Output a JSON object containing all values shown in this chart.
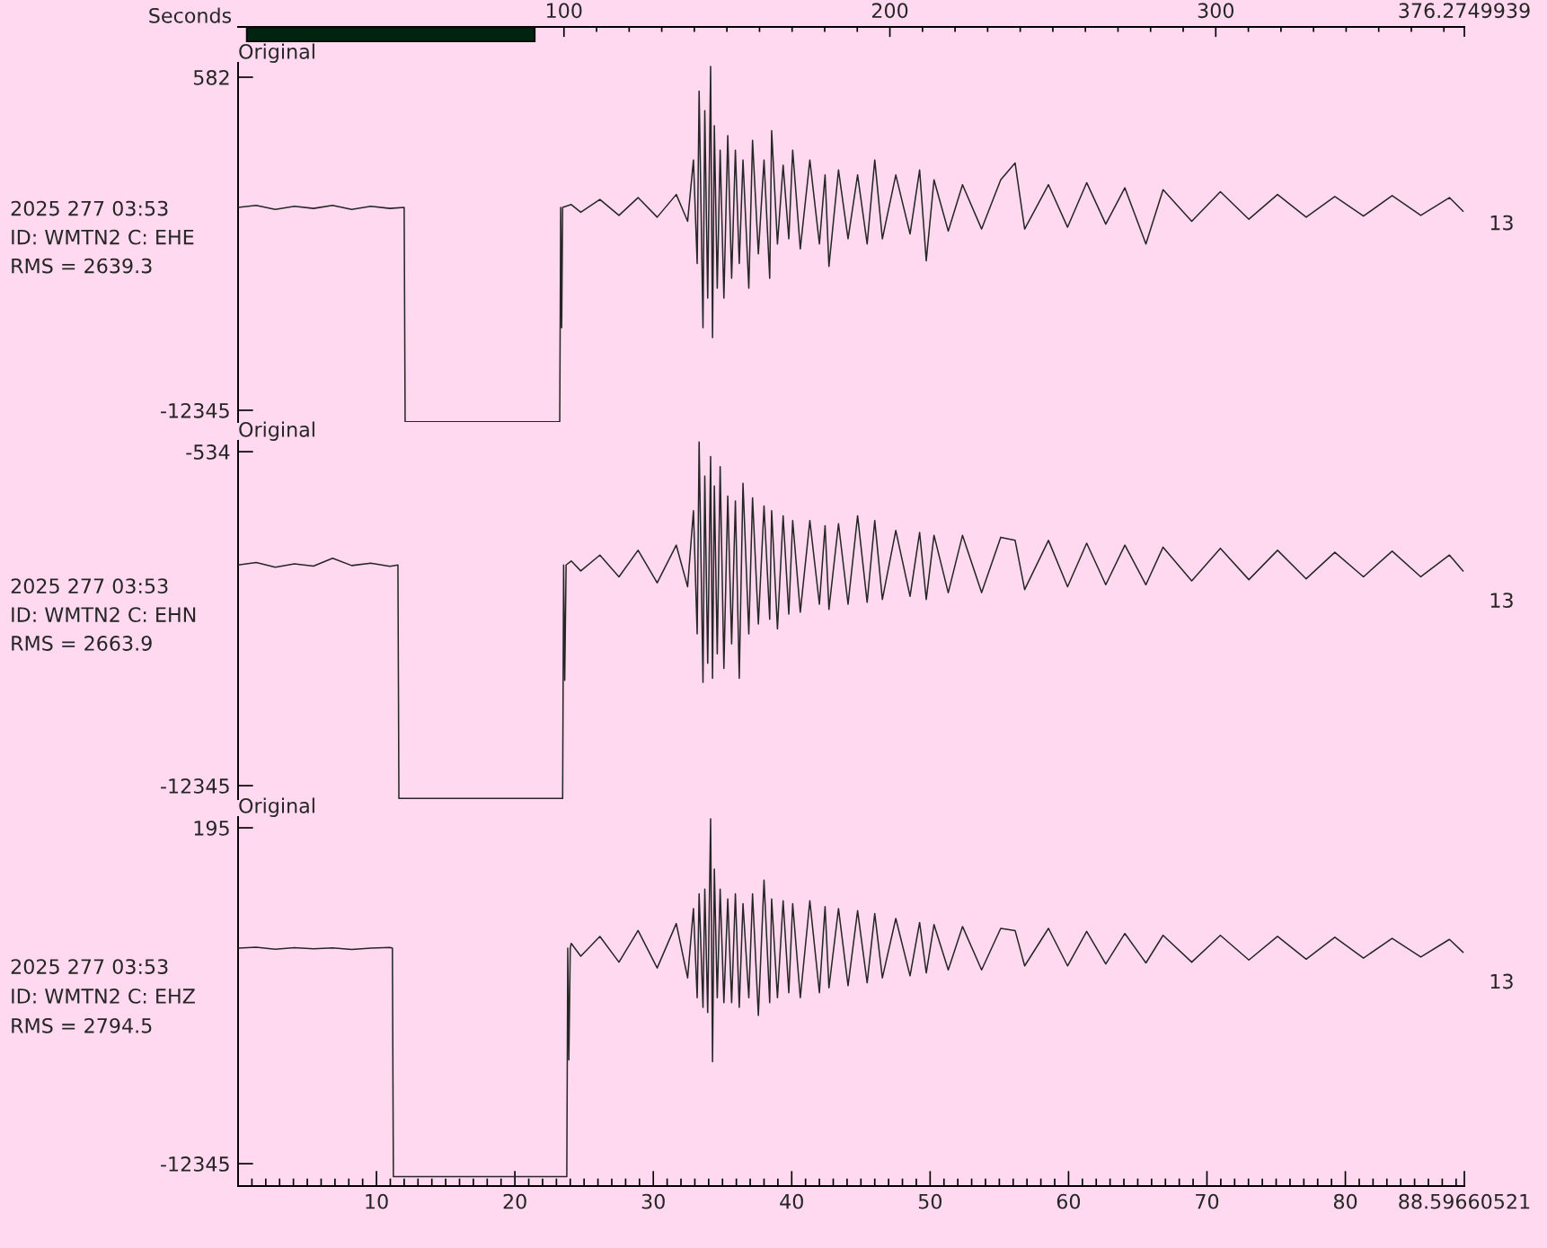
{
  "chart_data": [
    {
      "type": "bar",
      "orientation": "horizontal",
      "categories": [
        null
      ],
      "values": [
        88.3
      ],
      "base": [
        2.7
      ],
      "colors": [
        "#00240f"
      ],
      "xlabel": "Seconds",
      "xlim": [
        0,
        376.2749939
      ],
      "tick_labels": "x",
      "xticks": [
        {
          "value": 10,
          "label": null
        },
        {
          "value": 20,
          "label": null
        },
        {
          "value": 30,
          "label": null
        },
        {
          "value": 40,
          "label": null
        },
        {
          "value": 50,
          "label": null
        },
        {
          "value": 60,
          "label": null
        },
        {
          "value": 70,
          "label": null
        },
        {
          "value": 80,
          "label": null
        },
        {
          "value": 90,
          "label": null
        },
        100,
        {
          "value": 110,
          "label": null
        },
        {
          "value": 120,
          "label": null
        },
        {
          "value": 130,
          "label": null
        },
        {
          "value": 140,
          "label": null
        },
        {
          "value": 150,
          "label": null
        },
        {
          "value": 160,
          "label": null
        },
        {
          "value": 170,
          "label": null
        },
        {
          "value": 180,
          "label": null
        },
        {
          "value": 190,
          "label": null
        },
        200,
        {
          "value": 210,
          "label": null
        },
        {
          "value": 220,
          "label": null
        },
        {
          "value": 230,
          "label": null
        },
        {
          "value": 240,
          "label": null
        },
        {
          "value": 250,
          "label": null
        },
        {
          "value": 260,
          "label": null
        },
        {
          "value": 270,
          "label": null
        },
        {
          "value": 280,
          "label": null
        },
        {
          "value": 290,
          "label": null
        },
        300,
        {
          "value": 310,
          "label": null
        },
        {
          "value": 320,
          "label": null
        },
        {
          "value": 330,
          "label": null
        },
        {
          "value": 340,
          "label": null
        },
        {
          "value": 350,
          "label": null
        },
        {
          "value": 360,
          "label": null
        },
        {
          "value": 370,
          "label": null
        },
        376.2749939
      ],
      "grid": false
    },
    {
      "type": "line",
      "title": "Original",
      "xlim": [
        0,
        88.59660521
      ],
      "ylim": [
        -12800,
        1140
      ],
      "tick_labels": "y",
      "yticks": [
        582,
        -12345
      ],
      "annotations": [
        "2025 277 03:53",
        "ID: WMTN2 C: EHE",
        "RMS = 2639.3",
        "13"
      ],
      "series": [
        {
          "color": "#262626",
          "x": [
            0,
            1.31,
            2.69,
            4.07,
            5.45,
            6.83,
            8.21,
            9.59,
            10.97,
            12.0,
            12.07,
            23.24,
            23.31,
            23.38,
            23.45,
            24.07,
            24.76,
            26.14,
            27.52,
            28.9,
            30.28,
            31.66,
            32.48,
            32.9,
            33.17,
            33.31,
            33.59,
            33.72,
            33.93,
            34.14,
            34.28,
            34.41,
            34.62,
            34.83,
            35.1,
            35.38,
            35.66,
            35.93,
            36.21,
            36.48,
            36.9,
            37.17,
            37.59,
            38.0,
            38.41,
            38.55,
            38.97,
            39.38,
            39.79,
            40.07,
            40.62,
            41.31,
            42.0,
            42.41,
            42.69,
            43.38,
            44.07,
            44.76,
            45.45,
            46.0,
            46.55,
            47.52,
            48.55,
            49.24,
            49.72,
            50.28,
            51.31,
            52.34,
            53.72,
            55.1,
            56.14,
            56.83,
            58.55,
            59.93,
            61.31,
            62.69,
            64.07,
            65.59,
            66.83,
            68.9,
            70.97,
            73.03,
            75.1,
            77.17,
            79.24,
            81.31,
            83.38,
            85.45,
            87.52,
            88.5
          ],
          "values": [
            -4470,
            -4390,
            -4550,
            -4430,
            -4510,
            -4390,
            -4550,
            -4430,
            -4510,
            -4470,
            -12790,
            -12790,
            -4470,
            -9140,
            -4470,
            -4360,
            -4660,
            -4160,
            -4780,
            -4090,
            -4850,
            -3970,
            -5010,
            -2630,
            -6650,
            40,
            -9140,
            -720,
            -7990,
            1000,
            -9520,
            -1300,
            -7610,
            -2250,
            -7990,
            -1680,
            -7220,
            -2250,
            -6650,
            -2630,
            -7610,
            -1870,
            -6270,
            -2630,
            -7220,
            -1490,
            -5890,
            -2830,
            -5690,
            -2250,
            -6080,
            -2630,
            -5890,
            -3210,
            -6760,
            -3020,
            -5690,
            -3210,
            -5890,
            -2630,
            -5690,
            -3210,
            -5500,
            -3020,
            -6540,
            -3400,
            -5390,
            -3590,
            -5310,
            -3400,
            -2750,
            -5310,
            -3590,
            -5240,
            -3510,
            -5120,
            -3710,
            -5890,
            -3780,
            -5010,
            -3860,
            -4930,
            -3970,
            -4850,
            -4050,
            -4810,
            -4010,
            -4780,
            -4090,
            -4620
          ]
        }
      ]
    },
    {
      "type": "line",
      "title": "Original",
      "xlim": [
        0,
        88.59660521
      ],
      "ylim": [
        -12820,
        -150
      ],
      "tick_labels": "y",
      "yticks": [
        -534,
        -12345
      ],
      "annotations": [
        "2025 277 03:53",
        "ID: WMTN2 C: EHN",
        "RMS = 2663.9",
        "13"
      ],
      "series": [
        {
          "color": "#262626",
          "x": [
            0,
            1.31,
            2.69,
            4.07,
            5.45,
            6.83,
            8.21,
            9.59,
            10.97,
            11.55,
            11.62,
            23.45,
            23.52,
            23.6,
            23.7,
            24.07,
            24.76,
            26.14,
            27.52,
            28.9,
            30.28,
            31.66,
            32.48,
            32.9,
            33.17,
            33.31,
            33.59,
            33.72,
            33.93,
            34.14,
            34.28,
            34.41,
            34.62,
            34.83,
            35.1,
            35.38,
            35.66,
            35.93,
            36.21,
            36.48,
            36.9,
            37.17,
            37.59,
            38.0,
            38.41,
            38.55,
            38.97,
            39.38,
            39.79,
            40.07,
            40.62,
            41.31,
            42.0,
            42.41,
            42.69,
            43.38,
            44.07,
            44.76,
            45.45,
            46.0,
            46.55,
            47.52,
            48.55,
            49.24,
            49.72,
            50.28,
            51.31,
            52.34,
            53.72,
            55.1,
            56.14,
            56.83,
            58.55,
            59.93,
            61.31,
            62.69,
            64.07,
            65.59,
            66.83,
            68.9,
            70.97,
            73.03,
            75.1,
            77.17,
            79.24,
            81.31,
            83.38,
            85.45,
            87.52,
            88.5
          ],
          "values": [
            -4540,
            -4450,
            -4620,
            -4500,
            -4580,
            -4300,
            -4560,
            -4480,
            -4590,
            -4540,
            -12800,
            -12800,
            -4540,
            -8620,
            -4540,
            -4400,
            -4750,
            -4190,
            -4960,
            -4020,
            -5170,
            -3840,
            -5310,
            -2620,
            -6980,
            -190,
            -8690,
            -1400,
            -8020,
            -710,
            -8550,
            -1750,
            -7680,
            -1060,
            -8200,
            -2100,
            -7330,
            -2280,
            -8550,
            -1650,
            -6980,
            -2170,
            -6630,
            -2450,
            -6460,
            -2620,
            -6800,
            -2800,
            -6280,
            -2970,
            -6210,
            -2970,
            -5930,
            -3150,
            -6110,
            -3080,
            -5930,
            -2800,
            -5860,
            -2970,
            -5760,
            -3320,
            -5650,
            -3390,
            -5760,
            -3490,
            -5520,
            -3490,
            -5520,
            -3560,
            -3670,
            -5410,
            -3670,
            -5310,
            -3770,
            -5240,
            -3840,
            -5240,
            -3910,
            -5100,
            -3950,
            -5060,
            -4020,
            -5030,
            -4090,
            -4960,
            -4050,
            -4960,
            -4190,
            -4750
          ]
        }
      ]
    },
    {
      "type": "line",
      "title": "Original",
      "xlim": [
        0,
        88.59660521
      ],
      "ylim": [
        -13180,
        597
      ],
      "xticks": [
        {
          "value": 1,
          "label": null
        },
        {
          "value": 2,
          "label": null
        },
        {
          "value": 3,
          "label": null
        },
        {
          "value": 4,
          "label": null
        },
        {
          "value": 5,
          "label": null
        },
        {
          "value": 6,
          "label": null
        },
        {
          "value": 7,
          "label": null
        },
        {
          "value": 8,
          "label": null
        },
        {
          "value": 9,
          "label": null
        },
        10,
        {
          "value": 11,
          "label": null
        },
        {
          "value": 12,
          "label": null
        },
        {
          "value": 13,
          "label": null
        },
        {
          "value": 14,
          "label": null
        },
        {
          "value": 15,
          "label": null
        },
        {
          "value": 16,
          "label": null
        },
        {
          "value": 17,
          "label": null
        },
        {
          "value": 18,
          "label": null
        },
        {
          "value": 19,
          "label": null
        },
        20,
        {
          "value": 21,
          "label": null
        },
        {
          "value": 22,
          "label": null
        },
        {
          "value": 23,
          "label": null
        },
        {
          "value": 24,
          "label": null
        },
        {
          "value": 25,
          "label": null
        },
        {
          "value": 26,
          "label": null
        },
        {
          "value": 27,
          "label": null
        },
        {
          "value": 28,
          "label": null
        },
        {
          "value": 29,
          "label": null
        },
        30,
        {
          "value": 31,
          "label": null
        },
        {
          "value": 32,
          "label": null
        },
        {
          "value": 33,
          "label": null
        },
        {
          "value": 34,
          "label": null
        },
        {
          "value": 35,
          "label": null
        },
        {
          "value": 36,
          "label": null
        },
        {
          "value": 37,
          "label": null
        },
        {
          "value": 38,
          "label": null
        },
        {
          "value": 39,
          "label": null
        },
        40,
        {
          "value": 41,
          "label": null
        },
        {
          "value": 42,
          "label": null
        },
        {
          "value": 43,
          "label": null
        },
        {
          "value": 44,
          "label": null
        },
        {
          "value": 45,
          "label": null
        },
        {
          "value": 46,
          "label": null
        },
        {
          "value": 47,
          "label": null
        },
        {
          "value": 48,
          "label": null
        },
        {
          "value": 49,
          "label": null
        },
        50,
        {
          "value": 51,
          "label": null
        },
        {
          "value": 52,
          "label": null
        },
        {
          "value": 53,
          "label": null
        },
        {
          "value": 54,
          "label": null
        },
        {
          "value": 55,
          "label": null
        },
        {
          "value": 56,
          "label": null
        },
        {
          "value": 57,
          "label": null
        },
        {
          "value": 58,
          "label": null
        },
        {
          "value": 59,
          "label": null
        },
        60,
        {
          "value": 61,
          "label": null
        },
        {
          "value": 62,
          "label": null
        },
        {
          "value": 63,
          "label": null
        },
        {
          "value": 64,
          "label": null
        },
        {
          "value": 65,
          "label": null
        },
        {
          "value": 66,
          "label": null
        },
        {
          "value": 67,
          "label": null
        },
        {
          "value": 68,
          "label": null
        },
        {
          "value": 69,
          "label": null
        },
        70,
        {
          "value": 71,
          "label": null
        },
        {
          "value": 72,
          "label": null
        },
        {
          "value": 73,
          "label": null
        },
        {
          "value": 74,
          "label": null
        },
        {
          "value": 75,
          "label": null
        },
        {
          "value": 76,
          "label": null
        },
        {
          "value": 77,
          "label": null
        },
        {
          "value": 78,
          "label": null
        },
        {
          "value": 79,
          "label": null
        },
        80,
        {
          "value": 81,
          "label": null
        },
        {
          "value": 82,
          "label": null
        },
        {
          "value": 83,
          "label": null
        },
        {
          "value": 84,
          "label": null
        },
        {
          "value": 85,
          "label": null
        },
        {
          "value": 86,
          "label": null
        },
        {
          "value": 87,
          "label": null
        },
        {
          "value": 88,
          "label": null
        },
        88.59660521
      ],
      "yticks": [
        195,
        -12345
      ],
      "annotations": [
        "2025 277 03:53",
        "ID: WMTN2 C: EHZ",
        "RMS = 2794.5",
        "13"
      ],
      "series": [
        {
          "color": "#262626",
          "x": [
            0,
            1.31,
            2.69,
            4.07,
            5.45,
            6.83,
            8.21,
            9.59,
            10.97,
            11.15,
            11.22,
            23.75,
            23.82,
            23.9,
            24.0,
            24.07,
            24.76,
            26.14,
            27.52,
            28.9,
            30.28,
            31.66,
            32.48,
            32.9,
            33.17,
            33.31,
            33.59,
            33.72,
            33.93,
            34.14,
            34.28,
            34.41,
            34.62,
            34.83,
            35.1,
            35.38,
            35.66,
            35.93,
            36.21,
            36.48,
            36.9,
            37.17,
            37.59,
            38.0,
            38.41,
            38.55,
            38.97,
            39.38,
            39.79,
            40.07,
            40.62,
            41.31,
            42.0,
            42.41,
            42.69,
            43.38,
            44.07,
            44.76,
            45.45,
            46.0,
            46.55,
            47.52,
            48.55,
            49.24,
            49.72,
            50.28,
            51.31,
            52.34,
            53.72,
            55.1,
            56.14,
            56.83,
            58.55,
            59.93,
            61.31,
            62.69,
            64.07,
            65.59,
            66.83,
            68.9,
            70.97,
            73.03,
            75.1,
            77.17,
            79.24,
            81.31,
            83.38,
            85.45,
            87.52,
            88.5
          ],
          "values": [
            -4300,
            -4260,
            -4340,
            -4280,
            -4320,
            -4290,
            -4350,
            -4300,
            -4270,
            -4300,
            -12830,
            -12830,
            -4300,
            -8470,
            -4300,
            -4120,
            -4600,
            -3860,
            -4820,
            -3640,
            -5040,
            -3380,
            -5410,
            -2820,
            -6150,
            -2270,
            -6510,
            -2090,
            -6700,
            530,
            -8540,
            -1350,
            -6150,
            -2090,
            -6330,
            -2460,
            -6330,
            -2270,
            -6510,
            -2640,
            -6150,
            -2270,
            -6810,
            -1760,
            -6330,
            -2460,
            -6150,
            -2530,
            -5960,
            -2640,
            -6150,
            -2530,
            -5960,
            -2750,
            -5780,
            -2820,
            -5700,
            -2900,
            -5590,
            -3010,
            -5410,
            -3190,
            -5330,
            -3340,
            -5220,
            -3420,
            -5110,
            -3490,
            -5110,
            -3560,
            -3640,
            -4960,
            -3560,
            -4960,
            -3670,
            -4890,
            -3750,
            -4850,
            -3820,
            -4820,
            -3820,
            -4740,
            -3860,
            -4710,
            -3890,
            -4670,
            -3930,
            -4630,
            -3970,
            -4450
          ]
        }
      ]
    }
  ]
}
